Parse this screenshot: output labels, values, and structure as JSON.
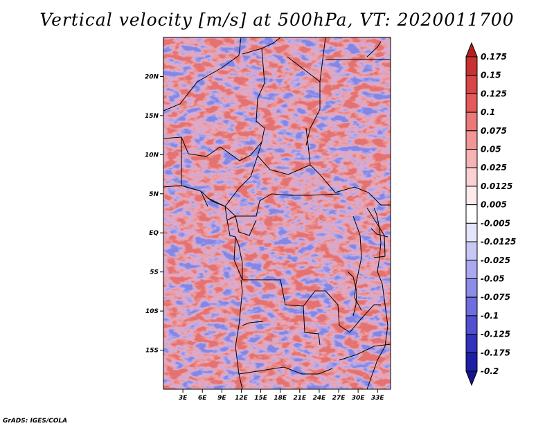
{
  "title": "Vertical velocity [m/s] at 500hPa, VT: 2020011700",
  "credit": "GrADS: IGES/COLA",
  "map": {
    "lon_range": [
      0,
      35
    ],
    "lat_range": [
      -20,
      25
    ],
    "lat_ticks": [
      {
        "value": 20,
        "label": "20N"
      },
      {
        "value": 15,
        "label": "15N"
      },
      {
        "value": 10,
        "label": "10N"
      },
      {
        "value": 5,
        "label": "5N"
      },
      {
        "value": 0,
        "label": "EQ"
      },
      {
        "value": -5,
        "label": "5S"
      },
      {
        "value": -10,
        "label": "10S"
      },
      {
        "value": -15,
        "label": "15S"
      }
    ],
    "lon_ticks": [
      {
        "value": 3,
        "label": "3E"
      },
      {
        "value": 6,
        "label": "6E"
      },
      {
        "value": 9,
        "label": "9E"
      },
      {
        "value": 12,
        "label": "12E"
      },
      {
        "value": 15,
        "label": "15E"
      },
      {
        "value": 18,
        "label": "18E"
      },
      {
        "value": 21,
        "label": "21E"
      },
      {
        "value": 24,
        "label": "24E"
      },
      {
        "value": 27,
        "label": "27E"
      },
      {
        "value": 30,
        "label": "30E"
      },
      {
        "value": 33,
        "label": "33E"
      }
    ]
  },
  "colorbar": {
    "labels": [
      "0.175",
      "0.15",
      "0.125",
      "0.1",
      "0.075",
      "0.05",
      "0.025",
      "0.0125",
      "0.005",
      "-0.005",
      "-0.0125",
      "-0.025",
      "-0.05",
      "-0.075",
      "-0.1",
      "-0.125",
      "-0.175",
      "-0.2"
    ],
    "colors": [
      "#b41e1e",
      "#c83232",
      "#d84646",
      "#e45a5a",
      "#ec7878",
      "#f29696",
      "#f6b4b4",
      "#fad2d2",
      "#fdeaea",
      "#ffffff",
      "#e4e4fa",
      "#c8c8f6",
      "#aaaaf0",
      "#8c8cea",
      "#6e6ee0",
      "#5050d0",
      "#3232bc",
      "#1e1ea6",
      "#14148c"
    ]
  }
}
